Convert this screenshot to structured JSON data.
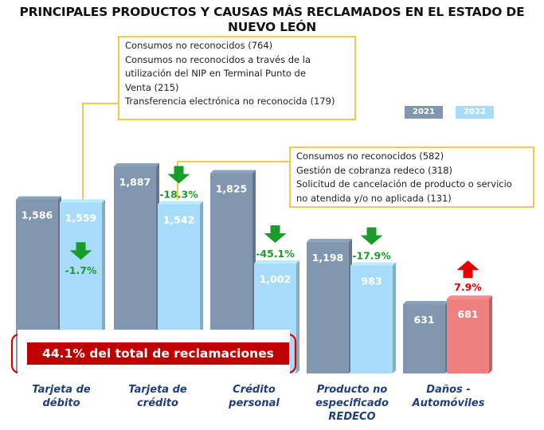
{
  "title": "PRINCIPALES PRODUCTOS Y CAUSAS MÁS RECLAMADOS EN EL ESTADO DE NUEVO LEÓN",
  "legend": [
    {
      "label": "2021",
      "color": "#8097af"
    },
    {
      "label": "2022",
      "color": "#a9dcfb"
    }
  ],
  "banner_text": "44.1% del total de reclamaciones",
  "callouts": [
    {
      "lines": [
        "Consumos no reconocidos (764)",
        "Consumos no reconocidos a través de la",
        "utilización del NIP en Terminal Punto de",
        "Venta (215)",
        "Transferencia electrónica no reconocida (179)"
      ]
    },
    {
      "lines": [
        "Consumos no reconocidos (582)",
        "Gestión de cobranza redeco (318)",
        "Solicitud de cancelación de producto o servicio",
        "no atendida y/o no aplicada (131)"
      ]
    }
  ],
  "chart_data": {
    "type": "bar",
    "title": "PRINCIPALES PRODUCTOS Y CAUSAS MÁS RECLAMADOS EN EL ESTADO DE NUEVO LEÓN",
    "categories": [
      "Tarjeta de débito",
      "Tarjeta de crédito",
      "Crédito personal",
      "Producto no especificado REDECO",
      "Daños - Automóviles"
    ],
    "category_lines": [
      [
        "Tarjeta de",
        "débito"
      ],
      [
        "Tarjeta de",
        "crédito"
      ],
      [
        "Crédito",
        "personal"
      ],
      [
        "Producto no",
        "especificado",
        "REDECO"
      ],
      [
        "Daños -",
        "Automóviles"
      ]
    ],
    "series": [
      {
        "name": "2021",
        "values": [
          1586,
          1887,
          1825,
          1198,
          631
        ],
        "labels": [
          "1,586",
          "1,887",
          "1,825",
          "1,198",
          "631"
        ]
      },
      {
        "name": "2022",
        "values": [
          1559,
          1542,
          1002,
          983,
          681
        ],
        "labels": [
          "1,559",
          "1,542",
          "1,002",
          "983",
          "681"
        ]
      }
    ],
    "changes": [
      {
        "label": "-1.7%",
        "direction": "down",
        "color": "#1a9c2a"
      },
      {
        "label": "-18.3%",
        "direction": "down",
        "color": "#1a9c2a"
      },
      {
        "label": "-45.1%",
        "direction": "down",
        "color": "#1a9c2a"
      },
      {
        "label": "-17.9%",
        "direction": "down",
        "color": "#1a9c2a"
      },
      {
        "label": "7.9%",
        "direction": "up",
        "color": "#e60000"
      }
    ],
    "highlight_color": "#f08080",
    "highlight_bar": {
      "category": "Daños - Automóviles",
      "series": "2022"
    },
    "ylim": [
      0,
      2000
    ],
    "xlabel": "",
    "ylabel": "",
    "grid": false,
    "legend_position": "top-right"
  }
}
